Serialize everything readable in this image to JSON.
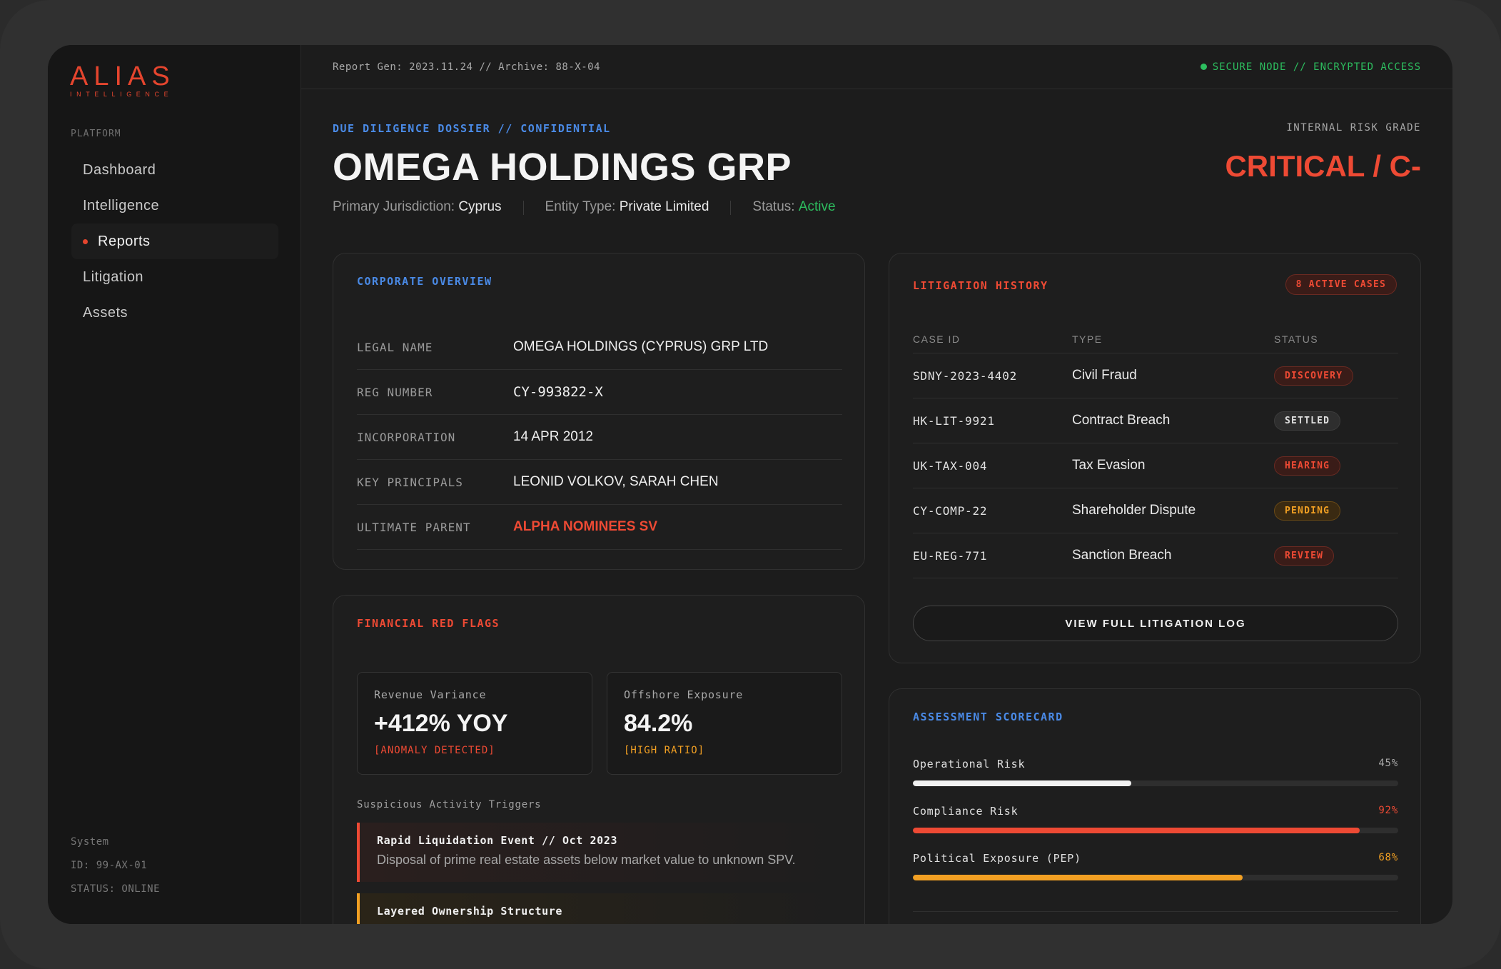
{
  "sidebar": {
    "logo": "ALIAS",
    "logo_sub": "INTELLIGENCE",
    "section_label": "PLATFORM",
    "items": [
      {
        "label": "Dashboard"
      },
      {
        "label": "Intelligence"
      },
      {
        "label": "Reports"
      },
      {
        "label": "Litigation"
      },
      {
        "label": "Assets"
      }
    ],
    "system": {
      "label": "System",
      "id": "ID: 99-AX-01",
      "status": "STATUS: ONLINE"
    }
  },
  "topbar": {
    "report_info": "Report Gen: 2023.11.24 // Archive: 88-X-04",
    "secure_status": "SECURE NODE // ENCRYPTED ACCESS"
  },
  "header": {
    "dossier_label": "DUE DILIGENCE DOSSIER // CONFIDENTIAL",
    "title": "OMEGA HOLDINGS GRP",
    "jurisdiction_label": "Primary Jurisdiction:",
    "jurisdiction_value": "Cyprus",
    "entity_label": "Entity Type:",
    "entity_value": "Private Limited",
    "status_label": "Status:",
    "status_value": "Active",
    "risk_label": "INTERNAL RISK GRADE",
    "risk_value": "CRITICAL / C-"
  },
  "corporate": {
    "title": "CORPORATE OVERVIEW",
    "rows": [
      {
        "key": "LEGAL NAME",
        "value": "OMEGA HOLDINGS (CYPRUS) GRP LTD"
      },
      {
        "key": "REG NUMBER",
        "value": "CY-993822-X"
      },
      {
        "key": "INCORPORATION",
        "value": "14 APR 2012"
      },
      {
        "key": "KEY PRINCIPALS",
        "value": "LEONID VOLKOV, SARAH CHEN"
      },
      {
        "key": "ULTIMATE PARENT",
        "value": "ALPHA NOMINEES SV"
      }
    ]
  },
  "financial": {
    "title": "FINANCIAL RED FLAGS",
    "stats": [
      {
        "label": "Revenue Variance",
        "value": "+412% YOY",
        "flag": "[ANOMALY DETECTED]"
      },
      {
        "label": "Offshore Exposure",
        "value": "84.2%",
        "flag": "[HIGH RATIO]"
      }
    ],
    "triggers_label": "Suspicious Activity Triggers",
    "triggers": [
      {
        "title": "Rapid Liquidation Event // Oct 2023",
        "desc": "Disposal of prime real estate assets below market value to unknown SPV."
      },
      {
        "title": "Layered Ownership Structure",
        "desc": ""
      }
    ]
  },
  "litigation": {
    "title": "LITIGATION HISTORY",
    "badge": "8 ACTIVE CASES",
    "columns": [
      "CASE ID",
      "TYPE",
      "STATUS"
    ],
    "rows": [
      {
        "id": "SDNY-2023-4402",
        "type": "Civil Fraud",
        "status": "DISCOVERY"
      },
      {
        "id": "HK-LIT-9921",
        "type": "Contract Breach",
        "status": "SETTLED"
      },
      {
        "id": "UK-TAX-004",
        "type": "Tax Evasion",
        "status": "HEARING"
      },
      {
        "id": "CY-COMP-22",
        "type": "Shareholder Dispute",
        "status": "PENDING"
      },
      {
        "id": "EU-REG-771",
        "type": "Sanction Breach",
        "status": "REVIEW"
      }
    ],
    "button": "VIEW FULL LITIGATION LOG"
  },
  "scorecard": {
    "title": "ASSESSMENT SCORECARD",
    "rows": [
      {
        "label": "Operational Risk",
        "pct": "45%",
        "value": 45,
        "color": "#f2f2f2"
      },
      {
        "label": "Compliance Risk",
        "pct": "92%",
        "value": 92,
        "color": "#ee4a34"
      },
      {
        "label": "Political Exposure (PEP)",
        "pct": "68%",
        "value": 68,
        "color": "#f2a023"
      }
    ]
  },
  "colors": {
    "accent_red": "#ee4a34",
    "accent_blue": "#4a8ae6",
    "accent_green": "#2dbe5f",
    "accent_orange": "#f2a023"
  }
}
